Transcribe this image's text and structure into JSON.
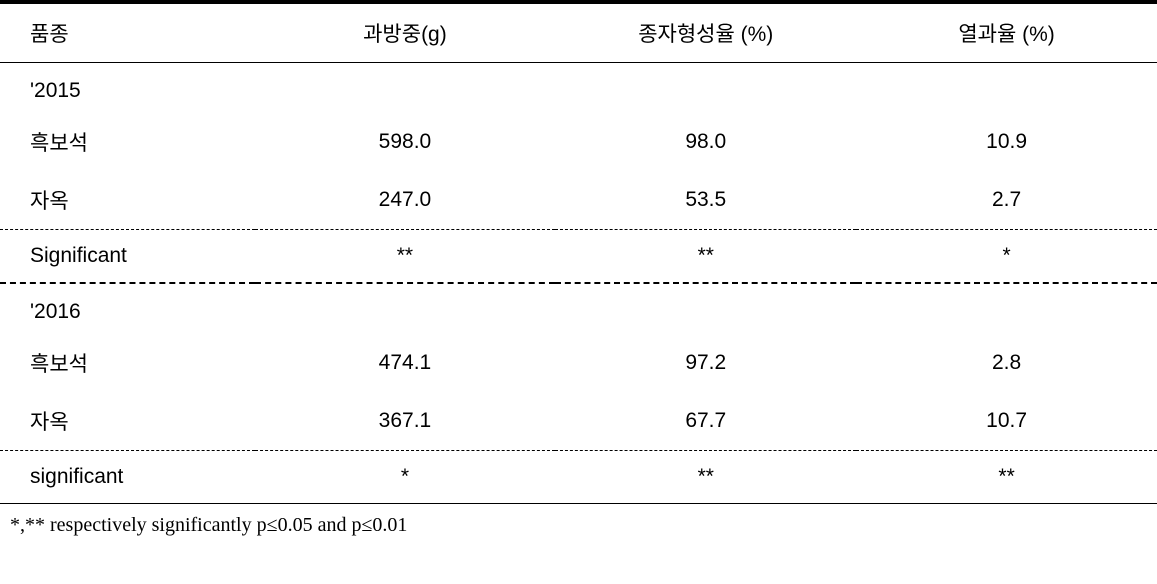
{
  "table": {
    "columns": [
      "품종",
      "과방중(g)",
      "종자형성율 (%)",
      "열과율 (%)"
    ],
    "column_widths": [
      "22%",
      "26%",
      "26%",
      "26%"
    ],
    "column_alignments": [
      "left",
      "center",
      "center",
      "center"
    ],
    "groups": [
      {
        "year": "'2015",
        "rows": [
          {
            "label": "흑보석",
            "values": [
              "598.0",
              "98.0",
              "10.9"
            ]
          },
          {
            "label": "자옥",
            "values": [
              "247.0",
              "53.5",
              "2.7"
            ]
          }
        ],
        "significant_label": "Significant",
        "significant": [
          "**",
          "**",
          "*"
        ],
        "sig_border_style": "dashed-border"
      },
      {
        "year": "'2016",
        "rows": [
          {
            "label": "흑보석",
            "values": [
              "474.1",
              "97.2",
              "2.8"
            ]
          },
          {
            "label": "자옥",
            "values": [
              "367.1",
              "67.7",
              "10.7"
            ]
          }
        ],
        "significant_label": "significant",
        "significant": [
          "*",
          "**",
          "**"
        ],
        "sig_border_style": "dashed-top-solid-bottom"
      }
    ]
  },
  "footnote": "*,** respectively significantly p≤0.05 and p≤0.01",
  "styling": {
    "font_family": "Malgun Gothic",
    "body_fontsize": 21,
    "footnote_fontsize": 20,
    "text_color": "#000000",
    "background_color": "#ffffff",
    "top_border_width": 4,
    "header_bottom_border_width": 1,
    "dash_pattern": "dashed"
  }
}
